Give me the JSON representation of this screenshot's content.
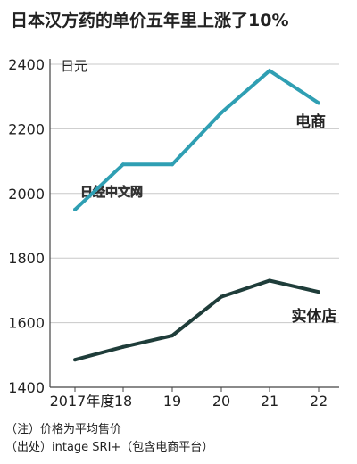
{
  "chart_data": {
    "type": "line",
    "title": "日本汉方药的单价五年里上涨了10%",
    "ylabel": "日元",
    "xlabel": "",
    "ylim": [
      1400,
      2400
    ],
    "yticks": [
      1400,
      1600,
      1800,
      2000,
      2200,
      2400
    ],
    "x_tick_labels": [
      "2017年度",
      "18",
      "19",
      "20",
      "21",
      "22"
    ],
    "grid": "horizontal",
    "watermark": "日经中文网",
    "series": [
      {
        "name": "电商",
        "color": "#2f9fb3",
        "values": [
          1950,
          2090,
          2090,
          2250,
          2380,
          2280
        ]
      },
      {
        "name": "实体店",
        "color": "#1f3d3a",
        "values": [
          1485,
          1525,
          1560,
          1680,
          1730,
          1695
        ]
      }
    ]
  },
  "notes": [
    "（注）价格为平均售价",
    "（出处）intage SRI+（包含电商平台）"
  ]
}
